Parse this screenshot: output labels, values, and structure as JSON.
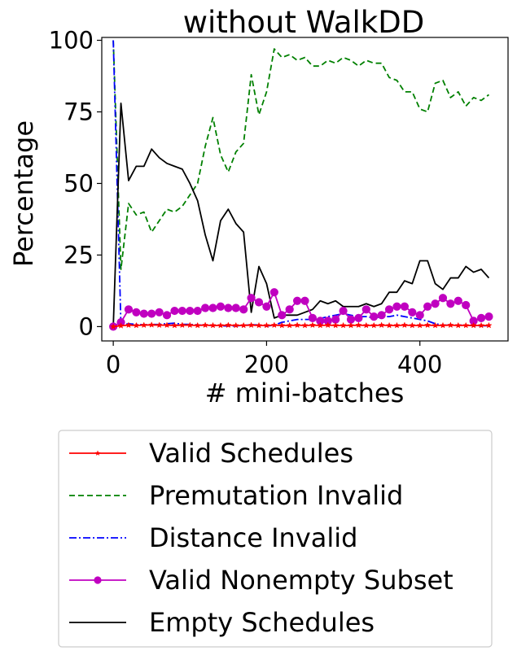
{
  "chart_data": {
    "type": "line",
    "title": "without WalkDD",
    "xlabel": "# mini-batches",
    "ylabel": "Percentage",
    "xlim": [
      -15,
      515
    ],
    "ylim": [
      -5,
      101
    ],
    "xticks": [
      0,
      200,
      400
    ],
    "yticks": [
      0,
      25,
      50,
      75,
      100
    ],
    "grid": false,
    "legend_position": "below",
    "x": [
      0,
      10,
      20,
      30,
      40,
      50,
      60,
      70,
      80,
      90,
      100,
      110,
      120,
      130,
      140,
      150,
      160,
      170,
      180,
      190,
      200,
      210,
      220,
      230,
      240,
      250,
      260,
      270,
      280,
      290,
      300,
      310,
      320,
      330,
      340,
      350,
      360,
      370,
      380,
      390,
      400,
      410,
      420,
      430,
      440,
      450,
      460,
      470,
      480,
      490
    ],
    "series": [
      {
        "name": "Valid Schedules",
        "color": "#ff0000",
        "style": "solid-star",
        "values": [
          0,
          0.3,
          0.5,
          0.4,
          0.5,
          0.6,
          0.5,
          0.5,
          0.4,
          0.5,
          0.5,
          0.4,
          0.5,
          0.4,
          0.4,
          0.5,
          0.4,
          0.4,
          0.5,
          0.4,
          0.4,
          0.5,
          0.4,
          0.4,
          0.5,
          0.4,
          0.5,
          0.4,
          0.5,
          0.4,
          0.4,
          0.4,
          0.5,
          0.4,
          0.4,
          0.5,
          0.4,
          0.4,
          0.5,
          0.4,
          0.4,
          0.5,
          0.4,
          0.4,
          0.5,
          0.4,
          0.4,
          0.4,
          0.4,
          0.4
        ]
      },
      {
        "name": "Premutation Invalid",
        "color": "#008000",
        "style": "dashed",
        "values": [
          100,
          20,
          43,
          39,
          40,
          33,
          37,
          41,
          40,
          42,
          46,
          50,
          63,
          73,
          60,
          54,
          61,
          64,
          88,
          74,
          82,
          97,
          94,
          95,
          93,
          94,
          91,
          91,
          93,
          92,
          94,
          93,
          91,
          93,
          92,
          92,
          87,
          86,
          82,
          82,
          76,
          75,
          85,
          86,
          80,
          82,
          77,
          80,
          79,
          81
        ]
      },
      {
        "name": "Distance Invalid",
        "color": "#0000ff",
        "style": "dashdot",
        "values": [
          100,
          0.5,
          1,
          0.8,
          0.6,
          0.7,
          0.8,
          1,
          1.2,
          0.8,
          0.8,
          0.6,
          0.4,
          0.5,
          0.3,
          0.2,
          0.2,
          0.5,
          0.6,
          0.6,
          0.2,
          0.5,
          1.5,
          2,
          2.5,
          2.5,
          2.5,
          2.8,
          3.5,
          4,
          4.5,
          4,
          3.5,
          3.5,
          3,
          3.5,
          3.5,
          4,
          3.5,
          3,
          2.5,
          2,
          1,
          0.5,
          0.5,
          0.5,
          0.5,
          0.3,
          0.3,
          0.3
        ]
      },
      {
        "name": "Valid Nonempty Subset",
        "color": "#c000c0",
        "style": "solid-circle",
        "values": [
          0,
          1.5,
          6,
          5,
          4.5,
          4.5,
          5,
          4,
          5.5,
          5.5,
          5.5,
          5.5,
          6.5,
          6.5,
          7,
          6.5,
          6.5,
          6,
          10,
          8.5,
          7,
          12,
          4,
          6,
          9,
          9,
          3,
          2,
          2,
          2.5,
          5.5,
          2.5,
          3,
          6,
          3.5,
          4,
          6,
          7,
          7,
          5,
          4,
          7,
          8,
          10,
          8,
          9,
          7.5,
          2,
          3,
          3.5
        ]
      },
      {
        "name": "Empty Schedules",
        "color": "#000000",
        "style": "solid",
        "values": [
          0,
          78,
          51,
          56,
          56,
          62,
          59,
          57,
          56,
          55,
          50,
          44,
          32,
          23,
          37,
          41,
          36,
          33,
          5,
          21,
          15,
          3,
          4,
          4,
          4,
          5,
          6,
          9,
          8,
          9,
          7,
          7,
          7,
          8,
          7,
          8,
          12,
          12,
          16,
          15,
          23,
          23,
          15,
          13,
          17,
          17,
          21,
          19,
          20,
          17
        ]
      }
    ]
  }
}
